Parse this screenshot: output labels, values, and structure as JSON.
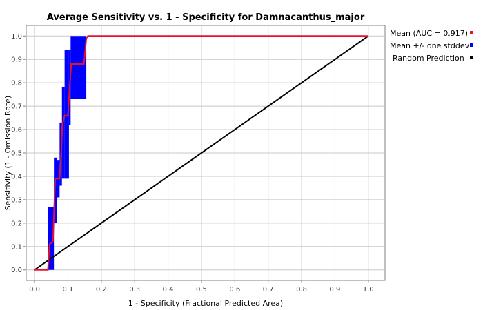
{
  "chart_data": {
    "type": "line",
    "title": "Average Sensitivity vs. 1 - Specificity for Damnacanthus_major",
    "xlabel": "1 - Specificity (Fractional Predicted Area)",
    "ylabel": "Sensitivity (1 - Omission Rate)",
    "xlim": [
      -0.025,
      1.05
    ],
    "ylim": [
      -0.045,
      1.045
    ],
    "x_ticks": [
      "0.0",
      "0.1",
      "0.2",
      "0.3",
      "0.4",
      "0.5",
      "0.6",
      "0.7",
      "0.8",
      "0.9",
      "1.0"
    ],
    "y_ticks": [
      "0.0",
      "0.1",
      "0.2",
      "0.3",
      "0.4",
      "0.5",
      "0.6",
      "0.7",
      "0.8",
      "0.9",
      "1.0"
    ],
    "grid": true,
    "legend_position": "right",
    "legend": [
      {
        "label": "Mean (AUC = 0.917)",
        "color": "#e8102a"
      },
      {
        "label": "Mean +/- one stddev",
        "color": "#0000ff"
      },
      {
        "label": "Random Prediction",
        "color": "#000000"
      }
    ],
    "series": [
      {
        "name": "Mean (AUC = 0.917)",
        "color": "#e8102a",
        "points": [
          [
            0.0,
            0.0
          ],
          [
            0.04,
            0.0
          ],
          [
            0.045,
            0.11
          ],
          [
            0.055,
            0.12
          ],
          [
            0.062,
            0.39
          ],
          [
            0.075,
            0.39
          ],
          [
            0.08,
            0.5
          ],
          [
            0.083,
            0.62
          ],
          [
            0.09,
            0.66
          ],
          [
            0.1,
            0.66
          ],
          [
            0.105,
            0.78
          ],
          [
            0.11,
            0.88
          ],
          [
            0.148,
            0.88
          ],
          [
            0.155,
            0.99
          ],
          [
            0.16,
            1.0
          ],
          [
            1.0,
            1.0
          ]
        ]
      },
      {
        "name": "Mean +/- one stddev",
        "color": "#0000ff",
        "bands": [
          {
            "x0": 0.04,
            "x1": 0.058,
            "low": 0.0,
            "high": 0.27
          },
          {
            "x0": 0.058,
            "x1": 0.066,
            "low": 0.2,
            "high": 0.48
          },
          {
            "x0": 0.066,
            "x1": 0.075,
            "low": 0.31,
            "high": 0.47
          },
          {
            "x0": 0.075,
            "x1": 0.082,
            "low": 0.36,
            "high": 0.63
          },
          {
            "x0": 0.082,
            "x1": 0.09,
            "low": 0.39,
            "high": 0.78
          },
          {
            "x0": 0.09,
            "x1": 0.103,
            "low": 0.39,
            "high": 0.94
          },
          {
            "x0": 0.103,
            "x1": 0.108,
            "low": 0.62,
            "high": 0.94
          },
          {
            "x0": 0.108,
            "x1": 0.155,
            "low": 0.73,
            "high": 1.0
          }
        ]
      },
      {
        "name": "Random Prediction",
        "color": "#000000",
        "points": [
          [
            0.0,
            0.0
          ],
          [
            1.0,
            1.0
          ]
        ]
      }
    ]
  }
}
